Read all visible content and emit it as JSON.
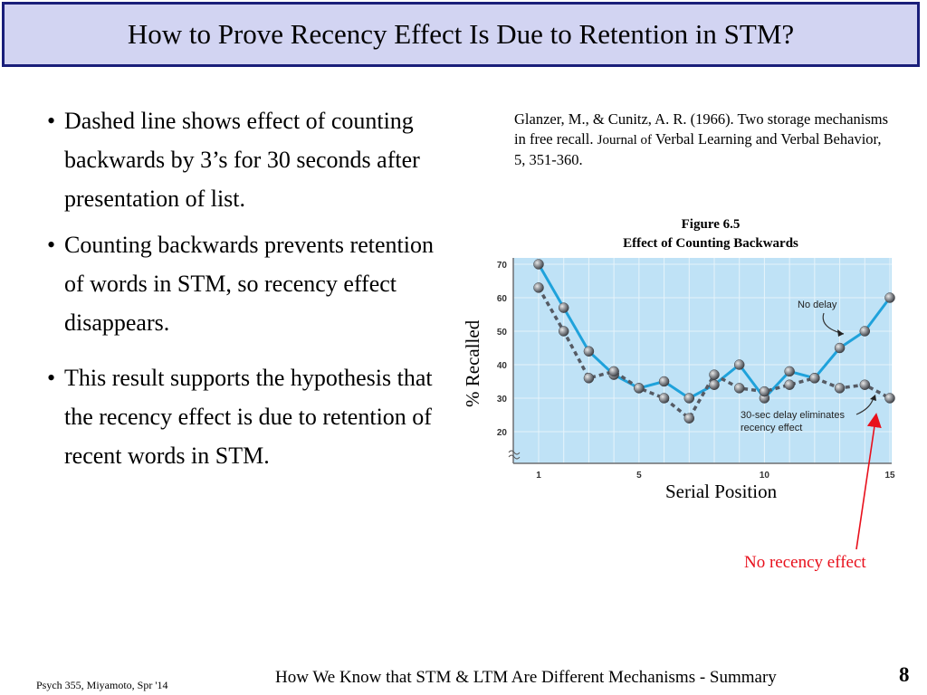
{
  "slide": {
    "title": "How to Prove Recency Effect Is Due to Retention in STM?",
    "bullets": [
      "Dashed line shows effect of counting backwards by 3’s for 30 seconds after presentation of list.",
      "Counting backwards prevents retention of words in STM, so recency effect disappears.",
      "This result supports the hypothesis that the recency effect is due to retention of recent words in STM."
    ],
    "bullet_char": "•",
    "citation": {
      "main": "Glanzer, M., & Cunitz, A. R. (1966). Two storage mechanisms in free recall.",
      "journal": "Journal of",
      "rest": "Verbal Learning and Verbal Behavior, 5, 351-360."
    },
    "figure": {
      "number": "Figure 6.5",
      "caption": "Effect of Counting Backwards"
    },
    "callout": "No recency effect",
    "callout_color": "#e8101c",
    "footer": {
      "left": "Psych 355, Miyamoto, Spr '14",
      "center": "How We Know that STM & LTM Are Different Mechanisms - Summary",
      "page": "8"
    }
  },
  "chart_data": {
    "type": "line",
    "title": "Figure 6.5 Effect of Counting Backwards",
    "xlabel": "Serial Position",
    "ylabel": "% Recalled",
    "x": [
      1,
      2,
      3,
      4,
      5,
      6,
      7,
      8,
      9,
      10,
      11,
      12,
      13,
      14,
      15
    ],
    "x_ticks": [
      "1",
      "5",
      "10",
      "15"
    ],
    "x_tick_values": [
      1,
      5,
      10,
      15
    ],
    "y_ticks": [
      "20",
      "30",
      "40",
      "50",
      "60",
      "70"
    ],
    "y_tick_values": [
      20,
      30,
      40,
      50,
      60,
      70
    ],
    "xlim": [
      0,
      15.2
    ],
    "ylim": [
      10,
      71
    ],
    "grid": true,
    "background": "#bfe2f6",
    "series": [
      {
        "name": "No delay",
        "style": "solid",
        "color": "#1fa2db",
        "values": [
          70,
          57,
          44,
          37,
          33,
          35,
          30,
          34,
          40,
          30,
          38,
          36,
          45,
          50,
          60
        ]
      },
      {
        "name": "30-sec delay eliminates recency effect",
        "style": "dashed",
        "color": "#555a63",
        "values": [
          63,
          50,
          36,
          38,
          33,
          30,
          24,
          37,
          33,
          32,
          34,
          36,
          33,
          34,
          30
        ]
      }
    ],
    "annotations": [
      {
        "text": "No delay",
        "target_series": 0
      },
      {
        "text_lines": [
          "30-sec delay eliminates",
          "recency effect"
        ],
        "target_series": 1
      }
    ]
  }
}
